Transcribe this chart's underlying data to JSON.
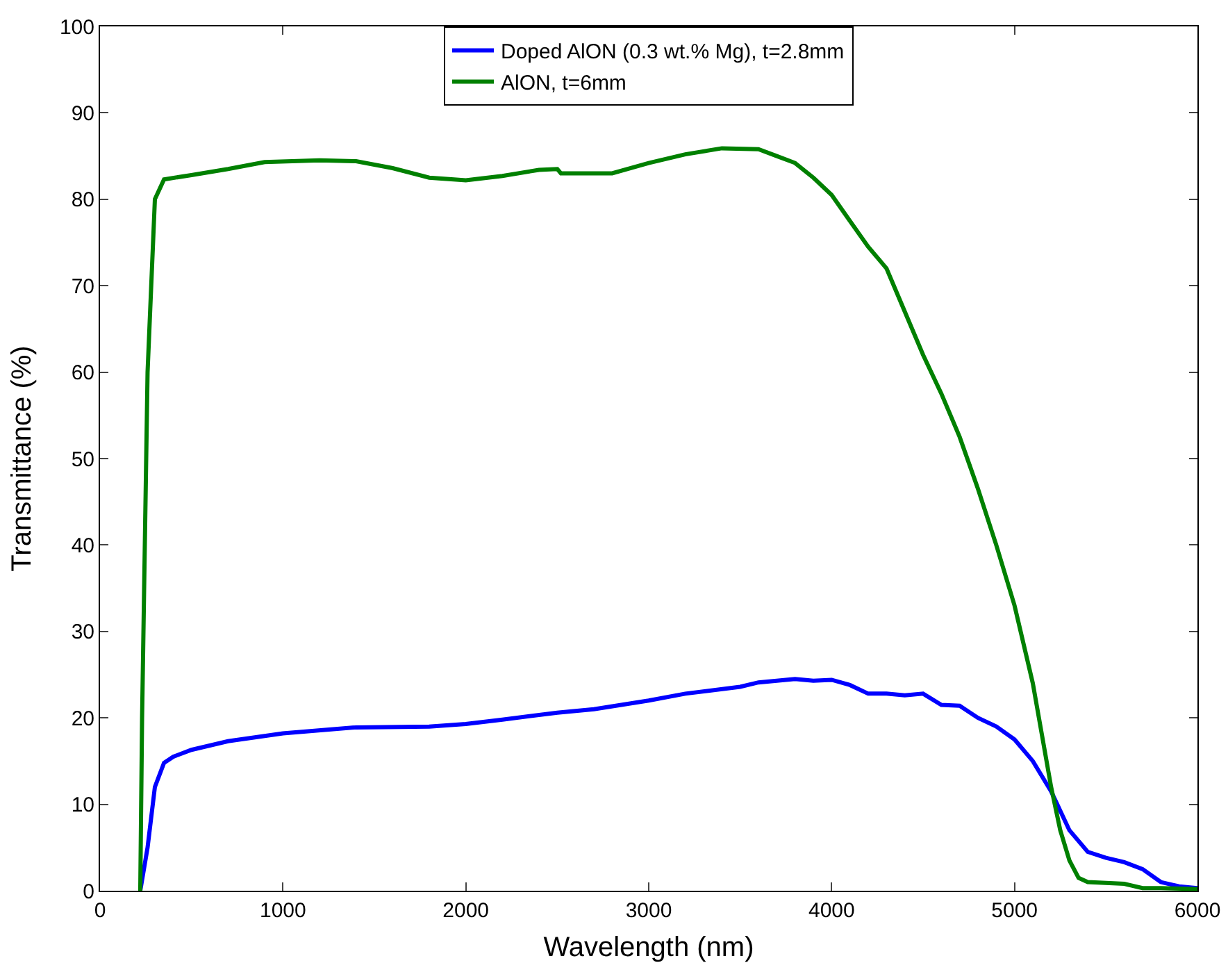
{
  "chart_data": {
    "type": "line",
    "xlabel": "Wavelength (nm)",
    "ylabel": "Transmittance (%)",
    "xlim": [
      0,
      6000
    ],
    "xticks": [
      0,
      1000,
      2000,
      3000,
      4000,
      5000,
      6000
    ],
    "ylim": [
      0,
      100
    ],
    "yticks": [
      0,
      10,
      20,
      30,
      40,
      50,
      60,
      70,
      80,
      90,
      100
    ],
    "grid": false,
    "legend": "top",
    "marker": "none",
    "line_style": "solid",
    "series": [
      {
        "name": "Doped AlON (0.3 wt.% Mg), t=2.8mm",
        "color": "#0000ff",
        "x": [
          220,
          260,
          300,
          350,
          400,
          500,
          700,
          1000,
          1400,
          1800,
          2000,
          2200,
          2500,
          2700,
          3000,
          3200,
          3500,
          3600,
          3800,
          3900,
          4000,
          4100,
          4200,
          4300,
          4400,
          4500,
          4600,
          4700,
          4800,
          4900,
          5000,
          5100,
          5200,
          5300,
          5400,
          5500,
          5600,
          5700,
          5800,
          5900,
          6000
        ],
        "values": [
          0,
          5,
          12,
          14.8,
          15.5,
          16.3,
          17.3,
          18.2,
          18.9,
          19,
          19.3,
          19.8,
          20.6,
          21,
          22,
          22.8,
          23.6,
          24.1,
          24.5,
          24.3,
          24.4,
          23.8,
          22.8,
          22.8,
          22.6,
          22.8,
          21.5,
          21.4,
          20,
          19,
          17.5,
          15,
          11.5,
          7,
          4.5,
          3.8,
          3.3,
          2.5,
          1,
          0.5,
          0.3
        ]
      },
      {
        "name": "AlON, t=6mm",
        "color": "#008000",
        "x": [
          220,
          230,
          260,
          300,
          350,
          500,
          700,
          900,
          1200,
          1400,
          1600,
          1800,
          2000,
          2200,
          2400,
          2500,
          2520,
          2800,
          3000,
          3200,
          3400,
          3600,
          3700,
          3800,
          3900,
          4000,
          4100,
          4200,
          4300,
          4400,
          4500,
          4600,
          4700,
          4800,
          4900,
          5000,
          5100,
          5150,
          5200,
          5250,
          5300,
          5350,
          5400,
          5600,
          5700,
          5800,
          6000
        ],
        "values": [
          0,
          20,
          60,
          80,
          82.3,
          82.8,
          83.5,
          84.3,
          84.5,
          84.4,
          83.6,
          82.5,
          82.2,
          82.7,
          83.4,
          83.5,
          83,
          83,
          84.2,
          85.2,
          85.9,
          85.8,
          85,
          84.2,
          82.5,
          80.5,
          77.5,
          74.5,
          72,
          67,
          62,
          57.5,
          52.5,
          46.5,
          40,
          33,
          24,
          18,
          12,
          7,
          3.5,
          1.5,
          1,
          0.8,
          0.3,
          0.3,
          0.2
        ]
      }
    ]
  }
}
